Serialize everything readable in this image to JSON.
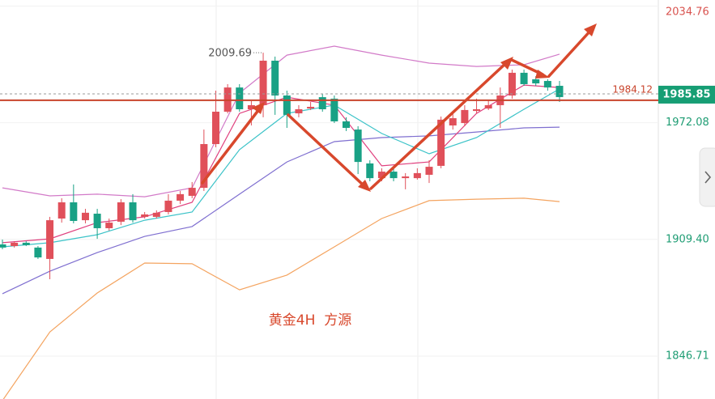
{
  "chart_data": {
    "type": "candlestick",
    "up_color": "#e0505a",
    "down_color": "#19a185",
    "open": [
      1906.7,
      1905.8,
      1907.6,
      1905.0,
      1898.9,
      1920.6,
      1929.3,
      1919.7,
      1923.2,
      1915.4,
      1918.9,
      1929.3,
      1921.5,
      1921.5,
      1924.1,
      1930.2,
      1932.8,
      1937.1,
      1960.6,
      1978.0,
      1991.0,
      1979.3,
      1981.5,
      2005.4,
      1986.7,
      1977.1,
      1979.7,
      1985.8,
      1985.0,
      1972.8,
      1968.4,
      1950.2,
      1942.3,
      1945.8,
      1942.3,
      1942.3,
      1944.1,
      1948.9,
      1970.6,
      1971.9,
      1978.4,
      1979.7,
      1981.5,
      1986.7,
      1998.9,
      1995.4,
      1994.5,
      1991.9
    ],
    "high": [
      1909.3,
      1908.4,
      1908.4,
      1905.8,
      1921.5,
      1931.5,
      1938.9,
      1925.8,
      1925.8,
      1920.6,
      1931.0,
      1933.7,
      1924.1,
      1925.0,
      1933.7,
      1935.4,
      1940.2,
      1968.4,
      1989.3,
      1992.8,
      1992.8,
      1983.7,
      2009.69,
      2007.6,
      1989.3,
      1981.5,
      1983.2,
      1987.6,
      1986.7,
      1975.0,
      1970.2,
      1951.9,
      1947.6,
      1947.6,
      1945.0,
      1947.6,
      1951.9,
      1975.4,
      1977.1,
      1981.5,
      1985.0,
      1984.1,
      1991.0,
      2000.6,
      2000.6,
      1997.1,
      1995.4,
      1994.5
    ],
    "low": [
      1904.1,
      1905.0,
      1905.8,
      1898.9,
      1888.0,
      1918.4,
      1918.0,
      1918.0,
      1909.7,
      1914.1,
      1917.1,
      1918.4,
      1920.6,
      1920.6,
      1922.8,
      1928.4,
      1931.5,
      1935.4,
      1958.9,
      1977.1,
      1978.0,
      1970.6,
      1975.0,
      1976.3,
      1969.3,
      1975.0,
      1978.9,
      1978.0,
      1971.9,
      1967.6,
      1944.5,
      1940.6,
      1940.6,
      1940.6,
      1936.3,
      1941.5,
      1939.7,
      1947.6,
      1968.4,
      1970.2,
      1977.1,
      1978.9,
      1969.3,
      1985.0,
      1991.9,
      1991.9,
      1989.3,
      1983.2
    ],
    "close": [
      1905.0,
      1907.6,
      1906.3,
      1899.7,
      1919.7,
      1929.3,
      1919.3,
      1923.7,
      1915.4,
      1918.4,
      1929.3,
      1919.7,
      1922.8,
      1923.7,
      1930.2,
      1933.7,
      1937.1,
      1960.6,
      1978.0,
      1991.0,
      1979.3,
      1981.5,
      2005.4,
      1986.7,
      1976.3,
      1979.3,
      1980.6,
      1979.3,
      1972.8,
      1969.3,
      1951.0,
      1942.3,
      1945.8,
      1942.3,
      1943.2,
      1945.0,
      1948.4,
      1973.7,
      1974.5,
      1978.9,
      1979.3,
      1981.5,
      1986.7,
      1998.9,
      1992.8,
      1993.2,
      1991.0,
      1985.85
    ],
    "line_x": [
      0,
      4,
      8,
      12,
      16,
      20,
      24,
      28,
      32,
      36,
      40,
      44,
      47
    ],
    "lines": [
      {
        "color": "#d27ac8",
        "values": [
          1937.1,
          1932.8,
          1933.7,
          1932.3,
          1937.1,
          1988.0,
          2008.4,
          2013.2,
          2008.4,
          2004.1,
          2002.3,
          2003.2,
          2008.9
        ]
      },
      {
        "color": "#f4a460",
        "values": [
          1822.8,
          1859.7,
          1880.6,
          1896.7,
          1896.3,
          1882.3,
          1890.2,
          1905.4,
          1920.6,
          1930.2,
          1931.0,
          1931.5,
          1929.7
        ]
      },
      {
        "color": "#7f6fd0",
        "values": [
          1880.2,
          1892.3,
          1902.3,
          1911.0,
          1916.3,
          1933.7,
          1951.0,
          1961.9,
          1964.1,
          1965.0,
          1967.1,
          1969.3,
          1969.7
        ]
      },
      {
        "color": "#3cc3c8",
        "values": [
          1905.4,
          1907.6,
          1911.9,
          1919.7,
          1924.1,
          1957.6,
          1977.1,
          1981.5,
          1966.3,
          1955.4,
          1964.1,
          1979.3,
          1990.2
        ]
      },
      {
        "color": "#e0407e",
        "values": [
          1907.6,
          1909.7,
          1918.4,
          1921.5,
          1929.3,
          1977.1,
          1985.8,
          1981.5,
          1948.9,
          1951.0,
          1977.1,
          1992.3,
          1991.0
        ]
      }
    ],
    "level": 1984.12,
    "last_price": 1985.85,
    "annotation": "黄金4H  方源",
    "ylim": [
      1823.65,
      2038
    ],
    "yticks": [
      {
        "value": 1846.71,
        "label": "1846.71"
      },
      {
        "value": 1909.4,
        "label": "1909.40"
      },
      {
        "value": 1972.08,
        "label": "1972.08"
      },
      {
        "value": 2034.76,
        "label": "2034.76"
      }
    ]
  }
}
